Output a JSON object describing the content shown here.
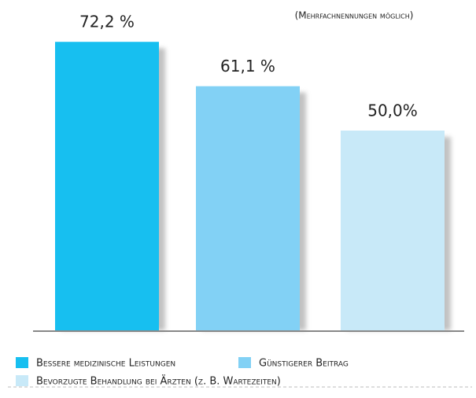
{
  "chart_data": {
    "type": "bar",
    "note": "(Mehrfachnennungen möglich)",
    "categories": [
      "Bessere medizinische Leistungen",
      "Günstigerer Beitrag",
      "Bevorzugte Behandlung bei Ärzten (z. B. Wartezeiten)"
    ],
    "values": [
      72.2,
      61.1,
      50.0
    ],
    "value_labels": [
      "72,2 %",
      "61,1 %",
      "50,0%"
    ],
    "colors": [
      "#17bff0",
      "#82d1f5",
      "#c8e9f8"
    ],
    "legend": "bottom"
  }
}
